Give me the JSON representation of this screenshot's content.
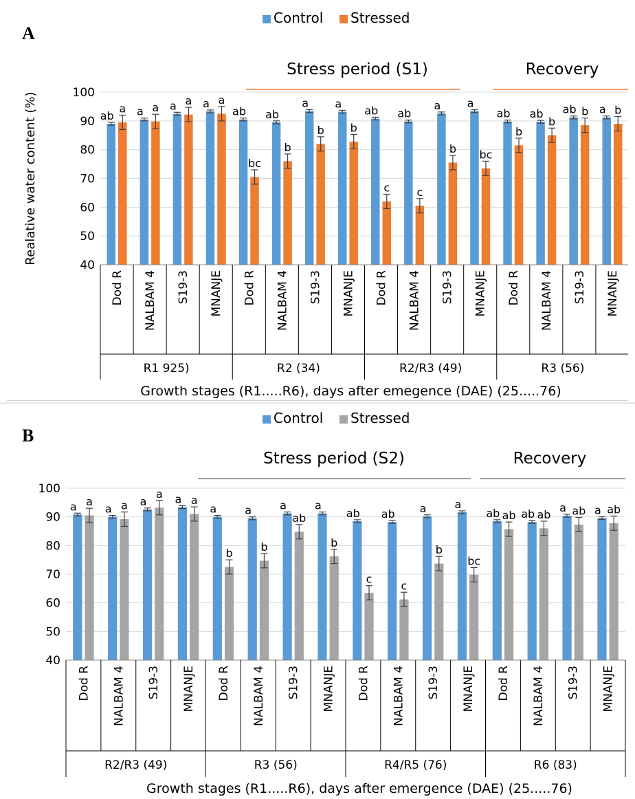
{
  "colors": {
    "control_A": "#5b9bd5",
    "stressed_A": "#ed7d31",
    "control_B": "#5b9bd5",
    "stressed_B": "#a5a5a5",
    "error": "#404040",
    "grid": "#d9d9d9",
    "period_line_A": "#ed7d31",
    "period_line_B": "#7f7f7f"
  },
  "chart_data": [
    {
      "panel_label": "A",
      "type": "bar",
      "ylabel": "Realative water content (%)",
      "xlabel": "Growth stages (R1.....R6), days after emegence (DAE) (25.....76)",
      "ylim": [
        40,
        100
      ],
      "yticks": [
        "40",
        "50",
        "60",
        "70",
        "80",
        "90",
        "100"
      ],
      "grid": true,
      "legend_position": "top-center",
      "categories": [
        "Dod R",
        "NALBAM 4",
        "S19-3",
        "MNANJE",
        "Dod R",
        "NALBAM 4",
        "S19-3",
        "MNANJE",
        "Dod R",
        "NALBAM 4",
        "S19-3",
        "MNANJE",
        "Dod R",
        "NALBAM 4",
        "S19-3",
        "MNANJE"
      ],
      "groups": [
        "R1 925)",
        "R2 (34)",
        "R2/R3 (49)",
        "R3 (56)"
      ],
      "period_labels": [
        "Stress period (S1)",
        "Recovery"
      ],
      "series": [
        {
          "name": "Control",
          "values": [
            89,
            90.5,
            92.5,
            93.3,
            90.5,
            89.5,
            93.4,
            93.2,
            90.8,
            89.8,
            92.6,
            93.4,
            89.8,
            89.7,
            91.2,
            91.2
          ],
          "errors": [
            0.5,
            0.5,
            0.5,
            0.5,
            0.5,
            0.5,
            0.5,
            0.5,
            0.5,
            0.5,
            0.5,
            0.5,
            0.5,
            0.5,
            0.5,
            0.5
          ],
          "letters": [
            "ab",
            "a",
            "a",
            "a",
            "ab",
            "ab",
            "a",
            "a",
            "ab",
            "ab",
            "a",
            "a",
            "ab",
            "ab",
            "ab",
            "a"
          ]
        },
        {
          "name": "Stressed",
          "values": [
            89.5,
            89.8,
            92.2,
            92.5,
            70.5,
            76,
            82,
            82.8,
            62,
            60.5,
            75.5,
            73.5,
            81.5,
            85,
            88.5,
            89
          ],
          "errors": [
            2.5,
            2.5,
            2.5,
            2.5,
            2.5,
            2.5,
            2.5,
            2.5,
            2.5,
            2.5,
            2.5,
            2.5,
            2.5,
            2.5,
            2.5,
            2.5
          ],
          "letters": [
            "a",
            "a",
            "a",
            "a",
            "bc",
            "b",
            "b",
            "b",
            "c",
            "c",
            "b",
            "bc",
            "b",
            "b",
            "b",
            "b"
          ]
        }
      ]
    },
    {
      "panel_label": "B",
      "type": "bar",
      "ylabel": "",
      "xlabel": "Growth stages (R1.....R6), days after emergence (DAE) (25.....76)",
      "ylim": [
        40,
        100
      ],
      "yticks": [
        "40",
        "50",
        "60",
        "70",
        "80",
        "90",
        "100"
      ],
      "grid": true,
      "legend_position": "top-center",
      "categories": [
        "Dod R",
        "NALBAM 4",
        "S19-3",
        "MNANJE",
        "Dod R",
        "NALBAM 4",
        "S19-3",
        "MNANJE",
        "Dod R",
        "NALBAM 4",
        "S19-3",
        "MNANJE",
        "Dod R",
        "NALBAM 4",
        "S19-3",
        "MNANJE"
      ],
      "groups": [
        "R2/R3 (49)",
        "R3 (56)",
        "R4/R5 (76)",
        "R6 (83)"
      ],
      "period_labels": [
        "Stress period (S2)",
        "Recovery"
      ],
      "series": [
        {
          "name": "Control",
          "values": [
            90.8,
            90,
            92.6,
            93.4,
            90,
            89.5,
            91.2,
            91.2,
            88.5,
            88.2,
            90.2,
            91.6,
            88.5,
            88.2,
            90.4,
            89.6
          ],
          "errors": [
            0.5,
            0.5,
            0.5,
            0.5,
            0.5,
            0.5,
            0.5,
            0.5,
            0.5,
            0.5,
            0.5,
            0.5,
            0.5,
            0.5,
            0.5,
            0.5
          ],
          "letters": [
            "a",
            "a",
            "a",
            "a",
            "a",
            "a",
            "a",
            "a",
            "ab",
            "ab",
            "a",
            "a",
            "ab",
            "ab",
            "a",
            "a"
          ]
        },
        {
          "name": "Stressed",
          "values": [
            90.5,
            89.2,
            93.2,
            91,
            72.5,
            74.7,
            84.8,
            76.2,
            63.5,
            61.2,
            73.7,
            69.8,
            85.7,
            86,
            87.3,
            87.8
          ],
          "errors": [
            2.5,
            2.5,
            2.5,
            2.5,
            2.5,
            2.5,
            2.5,
            2.5,
            2.5,
            2.5,
            2.5,
            2.5,
            2.5,
            2.5,
            2.5,
            2.5
          ],
          "letters": [
            "a",
            "a",
            "a",
            "a",
            "b",
            "b",
            "ab",
            "b",
            "c",
            "c",
            "b",
            "bc",
            "ab",
            "ab",
            "ab",
            "ab"
          ]
        }
      ]
    }
  ]
}
